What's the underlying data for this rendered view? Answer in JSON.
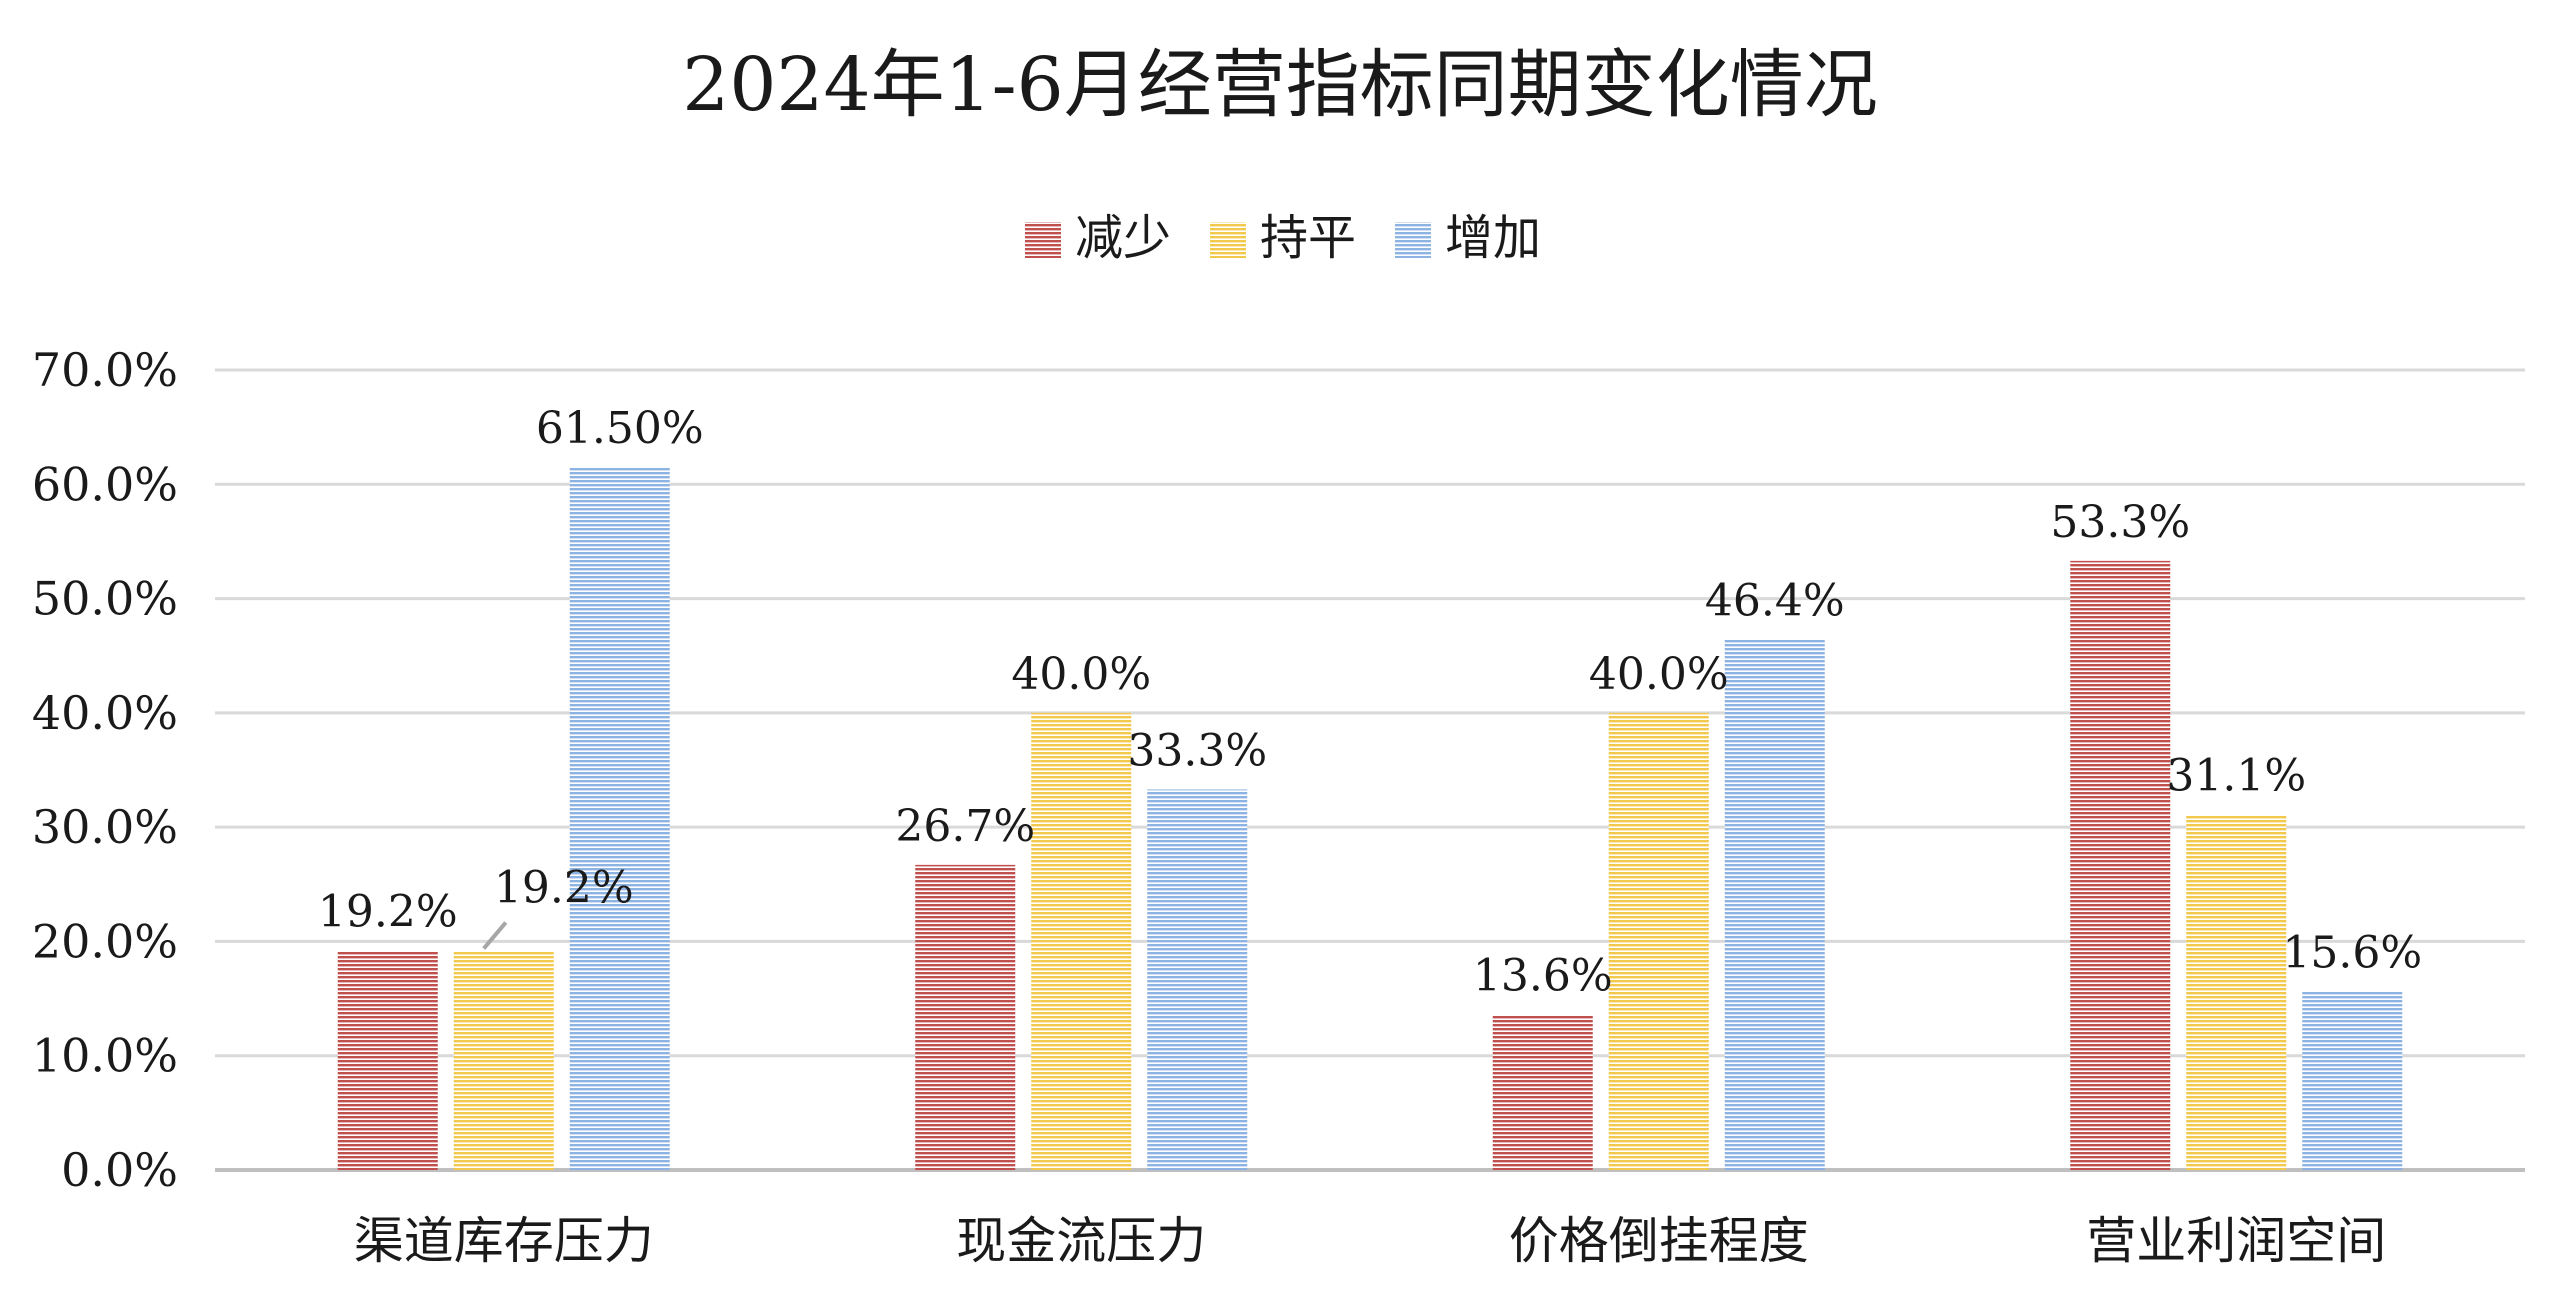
{
  "chart_data": {
    "type": "bar",
    "title": "2024年1-6月经营指标同期变化情况",
    "xlabel": "",
    "ylabel": "",
    "ylim": [
      0,
      70
    ],
    "y_ticks": [
      "0.0%",
      "10.0%",
      "20.0%",
      "30.0%",
      "40.0%",
      "50.0%",
      "60.0%",
      "70.0%"
    ],
    "grid": true,
    "legend_position": "top-center",
    "categories": [
      "渠道库存压力",
      "现金流压力",
      "价格倒挂程度",
      "营业利润空间"
    ],
    "series": [
      {
        "name": "减少",
        "color": "#c0504d",
        "values": [
          19.2,
          26.7,
          13.6,
          53.3
        ],
        "labels": [
          "19.2%",
          "26.7%",
          "13.6%",
          "53.3%"
        ]
      },
      {
        "name": "持平",
        "color": "#f2c94c",
        "values": [
          19.2,
          40.0,
          40.0,
          31.1
        ],
        "labels": [
          "19.2%",
          "40.0%",
          "40.0%",
          "31.1%"
        ]
      },
      {
        "name": "增加",
        "color": "#8db3e2",
        "values": [
          61.5,
          33.3,
          46.4,
          15.6
        ],
        "labels": [
          "61.50%",
          "33.3%",
          "46.4%",
          "15.6%"
        ]
      }
    ]
  }
}
